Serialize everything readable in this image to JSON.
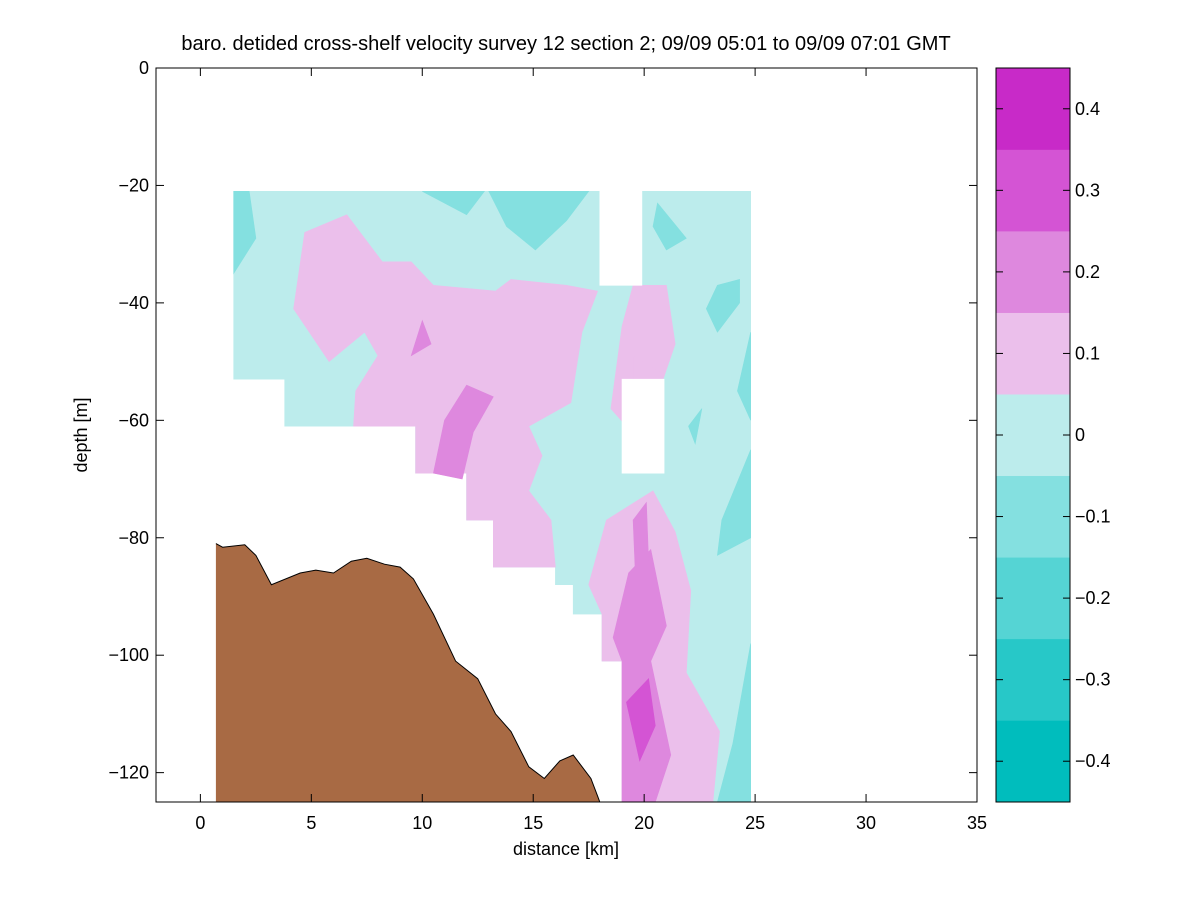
{
  "chart_data": {
    "type": "heatmap",
    "title": "baro. detided cross-shelf velocity survey 12 section 2; 09/09 05:01 to 09/09 07:01 GMT",
    "xlabel": "distance [km]",
    "ylabel": "depth [m]",
    "xlim": [
      -2,
      35
    ],
    "ylim": [
      -125,
      0
    ],
    "x_ticks": [
      0,
      5,
      10,
      15,
      20,
      25,
      30,
      35
    ],
    "x_tick_labels": [
      "0",
      "5",
      "10",
      "15",
      "20",
      "25",
      "30",
      "35"
    ],
    "y_ticks": [
      0,
      -20,
      -40,
      -60,
      -80,
      -100,
      -120
    ],
    "y_tick_labels": [
      "0",
      "−20",
      "−40",
      "−60",
      "−80",
      "−100",
      "−120"
    ],
    "grid": false,
    "colorbar": {
      "range": [
        -0.45,
        0.45
      ],
      "levels": [
        -0.45,
        -0.35,
        -0.25,
        -0.15,
        -0.05,
        0.05,
        0.15,
        0.25,
        0.35,
        0.45
      ],
      "colors": [
        "#00bdbd",
        "#27c8c8",
        "#55d4d4",
        "#84e0e0",
        "#bcecec",
        "#ebbfeb",
        "#de88de",
        "#d454d4",
        "#c82ac8",
        "#bd00bd"
      ],
      "ticks": [
        0.4,
        0.3,
        0.2,
        0.1,
        0,
        -0.1,
        -0.2,
        -0.3,
        -0.4
      ],
      "tick_labels": [
        "0.4",
        "0.3",
        "0.2",
        "0.1",
        "0",
        "−0.1",
        "−0.2",
        "−0.3",
        "−0.4"
      ]
    },
    "contour_regions": [
      {
        "level": 0.05,
        "polygon": [
          [
            1.5,
            -21
          ],
          [
            18,
            -21
          ],
          [
            18,
            -37
          ],
          [
            19.9,
            -37
          ],
          [
            19.9,
            -21
          ],
          [
            24.8,
            -21
          ],
          [
            24.8,
            -125
          ],
          [
            19,
            -125
          ],
          [
            19,
            -101
          ],
          [
            18.1,
            -101
          ],
          [
            18.1,
            -93
          ],
          [
            16.8,
            -93
          ],
          [
            16.8,
            -88
          ],
          [
            16,
            -88
          ],
          [
            16,
            -85
          ],
          [
            13.2,
            -85
          ],
          [
            13.2,
            -77
          ],
          [
            12,
            -77
          ],
          [
            12,
            -69
          ],
          [
            9.7,
            -69
          ],
          [
            9.7,
            -61
          ],
          [
            3.8,
            -61
          ],
          [
            3.8,
            -53
          ],
          [
            1.5,
            -53
          ]
        ]
      },
      {
        "level": -0.05,
        "polygon": [
          [
            1.5,
            -21
          ],
          [
            2.2,
            -21
          ],
          [
            2.5,
            -29
          ],
          [
            1.5,
            -35
          ]
        ]
      },
      {
        "level": -0.05,
        "polygon": [
          [
            10,
            -21
          ],
          [
            12.8,
            -21
          ],
          [
            12,
            -25
          ]
        ]
      },
      {
        "level": -0.05,
        "polygon": [
          [
            13,
            -21
          ],
          [
            17.5,
            -21
          ],
          [
            16.5,
            -26
          ],
          [
            15.1,
            -31
          ],
          [
            13.8,
            -27
          ]
        ]
      },
      {
        "level": -0.05,
        "polygon": [
          [
            20.6,
            -23
          ],
          [
            21.9,
            -29
          ],
          [
            21,
            -31
          ],
          [
            20.4,
            -27
          ]
        ]
      },
      {
        "level": -0.05,
        "polygon": [
          [
            23.3,
            -45
          ],
          [
            24.3,
            -40
          ],
          [
            24.3,
            -36
          ],
          [
            23.3,
            -37
          ],
          [
            22.8,
            -41
          ]
        ]
      },
      {
        "level": -0.05,
        "polygon": [
          [
            24.8,
            -45
          ],
          [
            24.2,
            -55
          ],
          [
            24.8,
            -60
          ]
        ]
      },
      {
        "level": -0.05,
        "polygon": [
          [
            22,
            -61
          ],
          [
            22.6,
            -58
          ],
          [
            22.3,
            -64
          ]
        ]
      },
      {
        "level": -0.05,
        "polygon": [
          [
            24.8,
            -65
          ],
          [
            23.5,
            -77
          ],
          [
            23.3,
            -83
          ],
          [
            24.8,
            -80
          ]
        ]
      },
      {
        "level": -0.05,
        "polygon": [
          [
            24.8,
            -98
          ],
          [
            24,
            -115
          ],
          [
            23.3,
            -125
          ],
          [
            24.8,
            -125
          ]
        ]
      },
      {
        "level": 0.15,
        "polygon": [
          [
            4.7,
            -28
          ],
          [
            6.6,
            -25
          ],
          [
            8.2,
            -33
          ],
          [
            9.5,
            -33
          ],
          [
            10.5,
            -37
          ],
          [
            13.3,
            -38
          ],
          [
            14,
            -36
          ],
          [
            16.5,
            -37
          ],
          [
            17.9,
            -38
          ],
          [
            17.2,
            -45
          ],
          [
            16.7,
            -57
          ],
          [
            14.8,
            -61
          ],
          [
            15.4,
            -66
          ],
          [
            14.8,
            -72
          ],
          [
            15.8,
            -77
          ],
          [
            16,
            -85
          ],
          [
            13.2,
            -85
          ],
          [
            13.2,
            -77
          ],
          [
            12,
            -77
          ],
          [
            12,
            -69
          ],
          [
            9.7,
            -69
          ],
          [
            9.7,
            -61
          ],
          [
            6.9,
            -61
          ],
          [
            7,
            -55
          ],
          [
            8,
            -49
          ],
          [
            7.4,
            -45
          ],
          [
            5.8,
            -50
          ],
          [
            4.2,
            -41
          ]
        ]
      },
      {
        "level": 0.15,
        "polygon": [
          [
            19.5,
            -37
          ],
          [
            21,
            -37
          ],
          [
            21.4,
            -47
          ],
          [
            20.4,
            -58
          ],
          [
            19.4,
            -54
          ],
          [
            19.2,
            -61
          ],
          [
            18.5,
            -58
          ],
          [
            19,
            -44
          ]
        ]
      },
      {
        "level": 0.15,
        "polygon": [
          [
            18.3,
            -77
          ],
          [
            20.4,
            -72
          ],
          [
            21.4,
            -79
          ],
          [
            22.1,
            -89
          ],
          [
            21.9,
            -103
          ],
          [
            23.4,
            -113
          ],
          [
            23.1,
            -125
          ],
          [
            19,
            -125
          ],
          [
            19,
            -101
          ],
          [
            18.1,
            -101
          ],
          [
            18.1,
            -93
          ],
          [
            17.5,
            -88
          ]
        ]
      },
      {
        "level": 0.15,
        "polygon": [
          [
            19.5,
            -49
          ],
          [
            20.8,
            -52
          ],
          [
            20.1,
            -67
          ],
          [
            19.5,
            -64
          ]
        ]
      },
      {
        "level": 0.25,
        "polygon": [
          [
            11,
            -60
          ],
          [
            12,
            -54
          ],
          [
            13.2,
            -56
          ],
          [
            12.3,
            -62
          ],
          [
            11.8,
            -70
          ],
          [
            10.5,
            -69
          ]
        ]
      },
      {
        "level": 0.25,
        "polygon": [
          [
            9.5,
            -49
          ],
          [
            10,
            -43
          ],
          [
            10.4,
            -47
          ]
        ]
      },
      {
        "level": 0.25,
        "polygon": [
          [
            19.3,
            -86
          ],
          [
            20.3,
            -82
          ],
          [
            21,
            -95
          ],
          [
            20.3,
            -101
          ],
          [
            21.2,
            -117
          ],
          [
            20.5,
            -125
          ],
          [
            19,
            -125
          ],
          [
            19,
            -101
          ],
          [
            18.6,
            -97
          ]
        ]
      },
      {
        "level": 0.25,
        "polygon": [
          [
            19.5,
            -77
          ],
          [
            20.1,
            -74
          ],
          [
            20.2,
            -84
          ],
          [
            19.6,
            -86
          ]
        ]
      },
      {
        "level": 0.35,
        "polygon": [
          [
            19.2,
            -108
          ],
          [
            20.2,
            -104
          ],
          [
            20.5,
            -112
          ],
          [
            19.8,
            -118
          ]
        ]
      }
    ],
    "nan_regions": [
      {
        "polygon": [
          [
            18,
            -21
          ],
          [
            19.9,
            -21
          ],
          [
            19.9,
            -37
          ],
          [
            18,
            -37
          ]
        ]
      },
      {
        "polygon": [
          [
            19,
            -53
          ],
          [
            20.9,
            -53
          ],
          [
            20.9,
            -69
          ],
          [
            19,
            -69
          ]
        ]
      }
    ],
    "bathymetry": [
      [
        0.7,
        -81
      ],
      [
        1,
        -81.6
      ],
      [
        2,
        -81.2
      ],
      [
        2.5,
        -83
      ],
      [
        3.2,
        -88
      ],
      [
        4.5,
        -86
      ],
      [
        5.2,
        -85.5
      ],
      [
        6,
        -86
      ],
      [
        6.8,
        -84
      ],
      [
        7.5,
        -83.5
      ],
      [
        8.3,
        -84.5
      ],
      [
        9,
        -85
      ],
      [
        9.6,
        -87
      ],
      [
        10.5,
        -93
      ],
      [
        11.5,
        -101
      ],
      [
        12.5,
        -104
      ],
      [
        13.3,
        -110
      ],
      [
        14,
        -113
      ],
      [
        14.8,
        -119
      ],
      [
        15.5,
        -121
      ],
      [
        16.2,
        -118
      ],
      [
        16.8,
        -117
      ],
      [
        17.6,
        -121
      ],
      [
        17.9,
        -124
      ],
      [
        18,
        -125
      ]
    ],
    "bathymetry_color": "#a86a44"
  }
}
